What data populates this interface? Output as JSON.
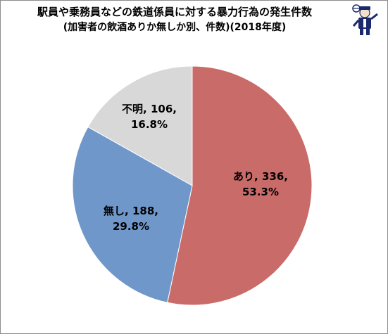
{
  "chart_data": {
    "type": "pie",
    "title": "駅員や乗務員などの鉄道係員に対する暴力行為の発生件数",
    "subtitle": "(加害者の飲酒ありか無しか別、件数)(2018年度)",
    "slices": [
      {
        "label": "あり",
        "value": 336,
        "percent": "53.3%",
        "color": "#c96b69",
        "text": "あり, 336,",
        "pct_text": "53.3%"
      },
      {
        "label": "無し",
        "value": 188,
        "percent": "29.8%",
        "color": "#6f97c9",
        "text": "無し, 188,",
        "pct_text": "29.8%"
      },
      {
        "label": "不明",
        "value": 106,
        "percent": "16.8%",
        "color": "#d8d8d8",
        "text": "不明, 106,",
        "pct_text": "16.8%"
      }
    ]
  },
  "colors": {
    "border": "#8c8c8c",
    "slice_edge": "#ffffff"
  },
  "icons": {
    "mascot": "mascot-icon"
  }
}
